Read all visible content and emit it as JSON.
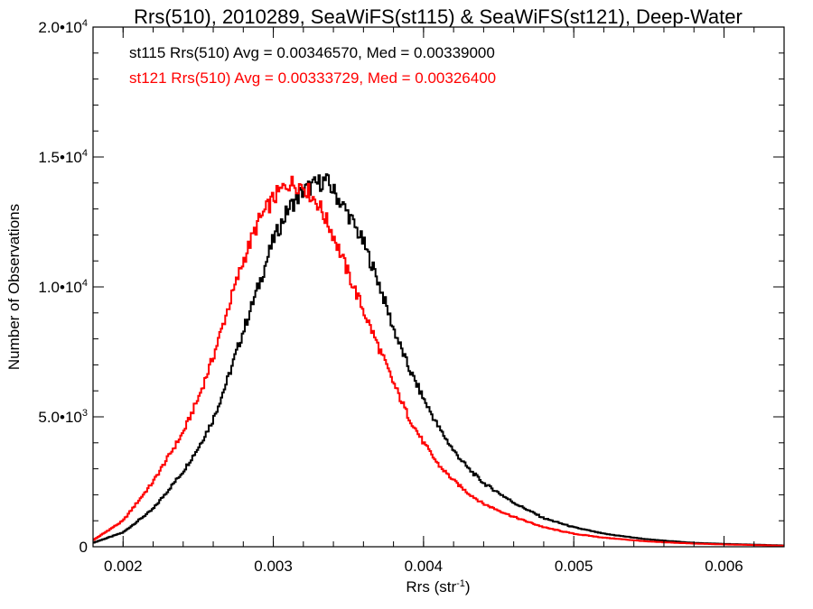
{
  "chart_data": {
    "type": "line",
    "style": "step-histogram",
    "title": "Rrs(510), 2010289, SeaWiFS(st115) & SeaWiFS(st121), Deep-Water",
    "xlabel_main": "Rrs (str",
    "xlabel_sup": "-1",
    "xlabel_close": ")",
    "ylabel": "Number of Observations",
    "xlim": [
      0.0018,
      0.0064
    ],
    "ylim": [
      0,
      20000
    ],
    "grid": false,
    "x_ticks": [
      {
        "value": 0.002,
        "label": "0.002"
      },
      {
        "value": 0.003,
        "label": "0.003"
      },
      {
        "value": 0.004,
        "label": "0.004"
      },
      {
        "value": 0.005,
        "label": "0.005"
      },
      {
        "value": 0.006,
        "label": "0.006"
      }
    ],
    "y_ticks": [
      {
        "value": 0,
        "mant": "0",
        "exp": ""
      },
      {
        "value": 5000,
        "mant": "5.0•10",
        "exp": "3"
      },
      {
        "value": 10000,
        "mant": "1.0•10",
        "exp": "4"
      },
      {
        "value": 15000,
        "mant": "1.5•10",
        "exp": "4"
      },
      {
        "value": 20000,
        "mant": "2.0•10",
        "exp": "4"
      }
    ],
    "annotations": [
      {
        "text": "st115 Rrs(510) Avg = 0.00346570, Med = 0.00339000",
        "color": "#000000"
      },
      {
        "text": "st121 Rrs(510) Avg = 0.00333729, Med = 0.00326400",
        "color": "#ff0000"
      }
    ],
    "series": [
      {
        "color": "#000000",
        "x": [
          0.0018,
          0.002,
          0.0022,
          0.0024,
          0.0025,
          0.0026,
          0.0027,
          0.0028,
          0.0029,
          0.003,
          0.0031,
          0.0032,
          0.0033,
          0.00335,
          0.0034,
          0.0035,
          0.0036,
          0.0037,
          0.0038,
          0.0039,
          0.004,
          0.0041,
          0.0042,
          0.0043,
          0.0044,
          0.0046,
          0.0048,
          0.005,
          0.0052,
          0.0055,
          0.0058,
          0.006,
          0.0064
        ],
        "y": [
          150,
          550,
          1450,
          2900,
          3800,
          4900,
          6500,
          8300,
          10000,
          11800,
          13000,
          13700,
          14000,
          14100,
          13700,
          12800,
          11700,
          10200,
          8400,
          6900,
          5700,
          4600,
          3700,
          3000,
          2450,
          1700,
          1100,
          750,
          500,
          280,
          150,
          110,
          50
        ]
      },
      {
        "color": "#ff0000",
        "x": [
          0.0018,
          0.002,
          0.0022,
          0.0024,
          0.0025,
          0.0026,
          0.0027,
          0.0028,
          0.0029,
          0.003,
          0.0031,
          0.0032,
          0.0033,
          0.0034,
          0.0035,
          0.0036,
          0.0037,
          0.0038,
          0.0039,
          0.004,
          0.0041,
          0.0042,
          0.0043,
          0.0044,
          0.0046,
          0.0048,
          0.005,
          0.0052,
          0.0055,
          0.0058,
          0.006,
          0.0064
        ],
        "y": [
          250,
          1000,
          2500,
          4400,
          5700,
          7300,
          9200,
          11000,
          12500,
          13400,
          14000,
          13900,
          13200,
          12000,
          10500,
          9100,
          7700,
          6300,
          5000,
          4000,
          3150,
          2550,
          2050,
          1650,
          1150,
          750,
          500,
          350,
          200,
          120,
          90,
          40
        ]
      }
    ]
  }
}
